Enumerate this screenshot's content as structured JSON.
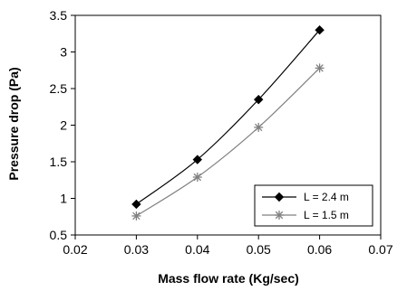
{
  "chart_data": {
    "type": "line",
    "title": "",
    "xlabel": "Mass flow rate (Kg/sec)",
    "ylabel": "Pressure drop (Pa)",
    "xlim": [
      0.02,
      0.07
    ],
    "ylim": [
      0.5,
      3.5
    ],
    "x_ticks": [
      0.02,
      0.03,
      0.04,
      0.05,
      0.06,
      0.07
    ],
    "y_ticks": [
      0.5,
      1,
      1.5,
      2,
      2.5,
      3,
      3.5
    ],
    "x_tick_labels": [
      "0.02",
      "0.03",
      "0.04",
      "0.05",
      "0.06",
      "0.07"
    ],
    "y_tick_labels": [
      "0.5",
      "1",
      "1.5",
      "2",
      "2.5",
      "3",
      "3.5"
    ],
    "grid": false,
    "legend_position": "bottom-right",
    "series": [
      {
        "name": "L = 2.4 m",
        "marker": "diamond",
        "color": "#000000",
        "x": [
          0.03,
          0.04,
          0.05,
          0.06
        ],
        "y": [
          0.92,
          1.53,
          2.35,
          3.3
        ]
      },
      {
        "name": "L = 1.5 m",
        "marker": "asterisk",
        "color": "#808080",
        "x": [
          0.03,
          0.04,
          0.05,
          0.06
        ],
        "y": [
          0.76,
          1.29,
          1.97,
          2.78
        ]
      }
    ]
  }
}
